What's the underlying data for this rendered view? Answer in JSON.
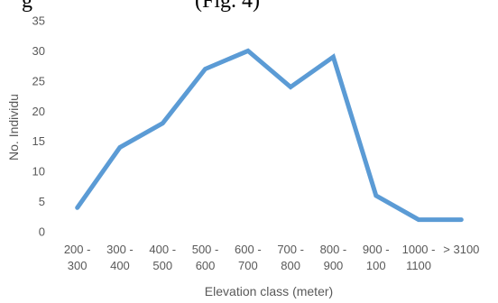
{
  "caption_fragment": "g                              (Fig. 4)",
  "chart_data": {
    "type": "line",
    "title": "",
    "xlabel": "Elevation class (meter)",
    "ylabel": "No. Individu",
    "ylim": [
      0,
      35
    ],
    "yticks": [
      "0",
      "5",
      "10",
      "15",
      "20",
      "25",
      "30",
      "35"
    ],
    "categories": [
      [
        "200 -",
        "300"
      ],
      [
        "300 -",
        "400"
      ],
      [
        "400 -",
        "500"
      ],
      [
        "500 -",
        "600"
      ],
      [
        "600 -",
        "700"
      ],
      [
        "700 -",
        "800"
      ],
      [
        "800 -",
        "900"
      ],
      [
        "900 -",
        "100"
      ],
      [
        "1000 -",
        "1100"
      ],
      [
        "> 3100",
        ""
      ]
    ],
    "series": [
      {
        "values": [
          4,
          14,
          18,
          27,
          30,
          24,
          29,
          6,
          2,
          2
        ]
      }
    ],
    "grid": false,
    "legend": "none",
    "colors": {
      "line": "#5b9bd5",
      "text": "#595959"
    }
  }
}
